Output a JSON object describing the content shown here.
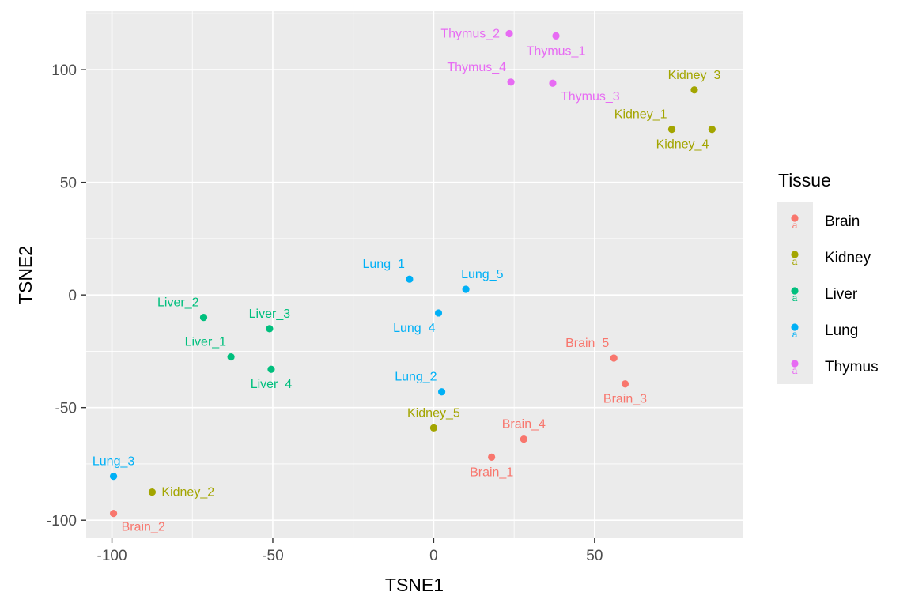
{
  "chart_data": {
    "type": "scatter",
    "xlabel": "TSNE1",
    "ylabel": "TSNE2",
    "xlim": [
      -108,
      96
    ],
    "ylim": [
      -108,
      126
    ],
    "x_ticks": [
      -100,
      -50,
      0,
      50
    ],
    "x_tick_labels": [
      "-100",
      "-50",
      "0",
      "50"
    ],
    "y_ticks": [
      -100,
      -50,
      0,
      50,
      100
    ],
    "y_tick_labels": [
      "-100",
      "-50",
      "0",
      "50",
      "100"
    ],
    "grid": true,
    "legend": {
      "title": "Tissue",
      "position": "right",
      "glyph": "a",
      "entries": [
        {
          "name": "Brain",
          "color": "#F8766D"
        },
        {
          "name": "Kidney",
          "color": "#A3A500"
        },
        {
          "name": "Liver",
          "color": "#00BF7D"
        },
        {
          "name": "Lung",
          "color": "#00B0F6"
        },
        {
          "name": "Thymus",
          "color": "#E76BF3"
        }
      ]
    },
    "points": [
      {
        "label": "Brain_1",
        "group": "Brain",
        "x": 18,
        "y": -72,
        "label_dir": "below"
      },
      {
        "label": "Brain_2",
        "group": "Brain",
        "x": -99.5,
        "y": -97,
        "label_dir": "below-right"
      },
      {
        "label": "Brain_3",
        "group": "Brain",
        "x": 59.5,
        "y": -39.5,
        "label_dir": "below"
      },
      {
        "label": "Brain_4",
        "group": "Brain",
        "x": 28,
        "y": -64,
        "label_dir": "above"
      },
      {
        "label": "Brain_5",
        "group": "Brain",
        "x": 56,
        "y": -28,
        "label_dir": "above-left"
      },
      {
        "label": "Kidney_1",
        "group": "Kidney",
        "x": 74,
        "y": 73.5,
        "label_dir": "above-left"
      },
      {
        "label": "Kidney_2",
        "group": "Kidney",
        "x": -87.5,
        "y": -87.5,
        "label_dir": "right"
      },
      {
        "label": "Kidney_3",
        "group": "Kidney",
        "x": 81,
        "y": 91,
        "label_dir": "above"
      },
      {
        "label": "Kidney_4",
        "group": "Kidney",
        "x": 86.5,
        "y": 73.5,
        "label_dir": "below-left"
      },
      {
        "label": "Kidney_5",
        "group": "Kidney",
        "x": 0,
        "y": -59,
        "label_dir": "above"
      },
      {
        "label": "Liver_1",
        "group": "Liver",
        "x": -63,
        "y": -27.5,
        "label_dir": "above-left"
      },
      {
        "label": "Liver_2",
        "group": "Liver",
        "x": -71.5,
        "y": -10,
        "label_dir": "above-left"
      },
      {
        "label": "Liver_3",
        "group": "Liver",
        "x": -51,
        "y": -15,
        "label_dir": "above"
      },
      {
        "label": "Liver_4",
        "group": "Liver",
        "x": -50.5,
        "y": -33,
        "label_dir": "below"
      },
      {
        "label": "Lung_1",
        "group": "Lung",
        "x": -7.5,
        "y": 7,
        "label_dir": "above-left"
      },
      {
        "label": "Lung_2",
        "group": "Lung",
        "x": 2.5,
        "y": -43,
        "label_dir": "above-left"
      },
      {
        "label": "Lung_3",
        "group": "Lung",
        "x": -99.5,
        "y": -80.5,
        "label_dir": "above"
      },
      {
        "label": "Lung_4",
        "group": "Lung",
        "x": 1.5,
        "y": -8,
        "label_dir": "below-left"
      },
      {
        "label": "Lung_5",
        "group": "Lung",
        "x": 10,
        "y": 2.5,
        "label_dir": "above-right"
      },
      {
        "label": "Thymus_1",
        "group": "Thymus",
        "x": 38,
        "y": 115,
        "label_dir": "below"
      },
      {
        "label": "Thymus_2",
        "group": "Thymus",
        "x": 23.5,
        "y": 116,
        "label_dir": "left"
      },
      {
        "label": "Thymus_3",
        "group": "Thymus",
        "x": 37,
        "y": 94,
        "label_dir": "below-right"
      },
      {
        "label": "Thymus_4",
        "group": "Thymus",
        "x": 24,
        "y": 94.5,
        "label_dir": "above-left"
      }
    ]
  }
}
